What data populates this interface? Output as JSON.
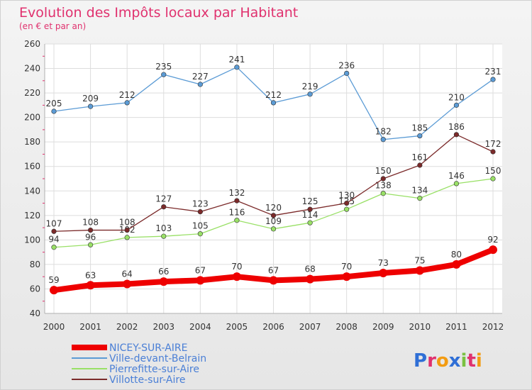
{
  "chart_data": {
    "type": "line",
    "title": "Evolution des Impôts locaux par Habitant",
    "subtitle": "(en € et par an)",
    "categories": [
      "2000",
      "2001",
      "2002",
      "2003",
      "2004",
      "2005",
      "2006",
      "2007",
      "2008",
      "2009",
      "2010",
      "2011",
      "2012"
    ],
    "ylim": [
      40,
      260
    ],
    "yticks": [
      40,
      60,
      80,
      100,
      120,
      140,
      160,
      180,
      200,
      220,
      240,
      260
    ],
    "grid": true,
    "legend_position": "bottom-left",
    "series": [
      {
        "name": "NICEY-SUR-AIRE",
        "color": "#ee0000",
        "values": [
          59,
          63,
          64,
          66,
          67,
          70,
          67,
          68,
          70,
          73,
          75,
          80,
          92
        ]
      },
      {
        "name": "Ville-devant-Belrain",
        "color": "#5b9bd5",
        "values": [
          205,
          209,
          212,
          235,
          227,
          241,
          212,
          219,
          236,
          182,
          185,
          210,
          231
        ]
      },
      {
        "name": "Pierrefitte-sur-Aire",
        "color": "#99e066",
        "values": [
          94,
          96,
          102,
          103,
          105,
          116,
          109,
          114,
          125,
          138,
          134,
          146,
          150
        ]
      },
      {
        "name": "Villotte-sur-Aire",
        "color": "#7b2a2a",
        "values": [
          107,
          108,
          108,
          127,
          123,
          132,
          120,
          125,
          130,
          150,
          161,
          186,
          172
        ]
      }
    ]
  },
  "brand": {
    "logo_text": "Proxiti",
    "letter_colors": [
      "#2f6fd6",
      "#e0316e",
      "#f39c12",
      "#2f6fd6",
      "#7ac142",
      "#e0316e",
      "#f39c12"
    ]
  }
}
